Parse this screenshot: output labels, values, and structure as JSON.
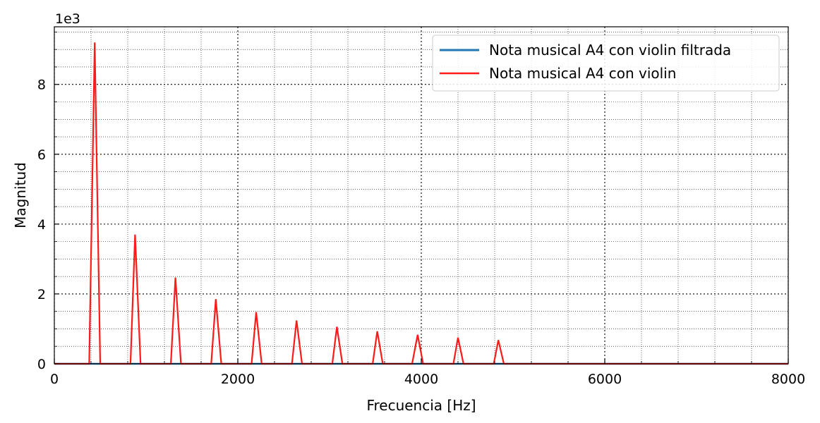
{
  "chart_data": {
    "type": "line",
    "xlabel": "Frecuencia [Hz]",
    "ylabel": "Magnitud",
    "offset_text": "1e3",
    "xlim": [
      0,
      8000
    ],
    "ylim": [
      0,
      9.65
    ],
    "y_scale_factor": 1000,
    "xticks": [
      0,
      2000,
      4000,
      6000,
      8000
    ],
    "xtick_labels": [
      "0",
      "2000",
      "4000",
      "6000",
      "8000"
    ],
    "yticks": [
      0,
      2,
      4,
      6,
      8
    ],
    "ytick_labels": [
      "0",
      "2",
      "4",
      "6",
      "8"
    ],
    "grid": true,
    "legend_position": "top-right",
    "series": [
      {
        "name": "Nota musical A4 con violin filtrada",
        "color": "#1f77b4",
        "x": [
          0,
          8000
        ],
        "y": [
          0,
          0
        ]
      },
      {
        "name": "Nota musical A4 con violin",
        "color": "#ff1a1a",
        "x": [
          0,
          380,
          440,
          500,
          830,
          880,
          940,
          1270,
          1320,
          1380,
          1710,
          1760,
          1820,
          2150,
          2200,
          2260,
          2590,
          2640,
          2700,
          3030,
          3080,
          3140,
          3470,
          3520,
          3580,
          3900,
          3960,
          4020,
          4350,
          4400,
          4460,
          4790,
          4840,
          4900,
          8000
        ],
        "y": [
          0,
          0,
          9.2,
          0,
          0,
          3.7,
          0,
          0,
          2.47,
          0,
          0,
          1.85,
          0,
          0,
          1.48,
          0,
          0,
          1.24,
          0,
          0,
          1.06,
          0,
          0,
          0.93,
          0,
          0,
          0.83,
          0,
          0,
          0.75,
          0,
          0,
          0.68,
          0,
          0
        ]
      }
    ]
  }
}
